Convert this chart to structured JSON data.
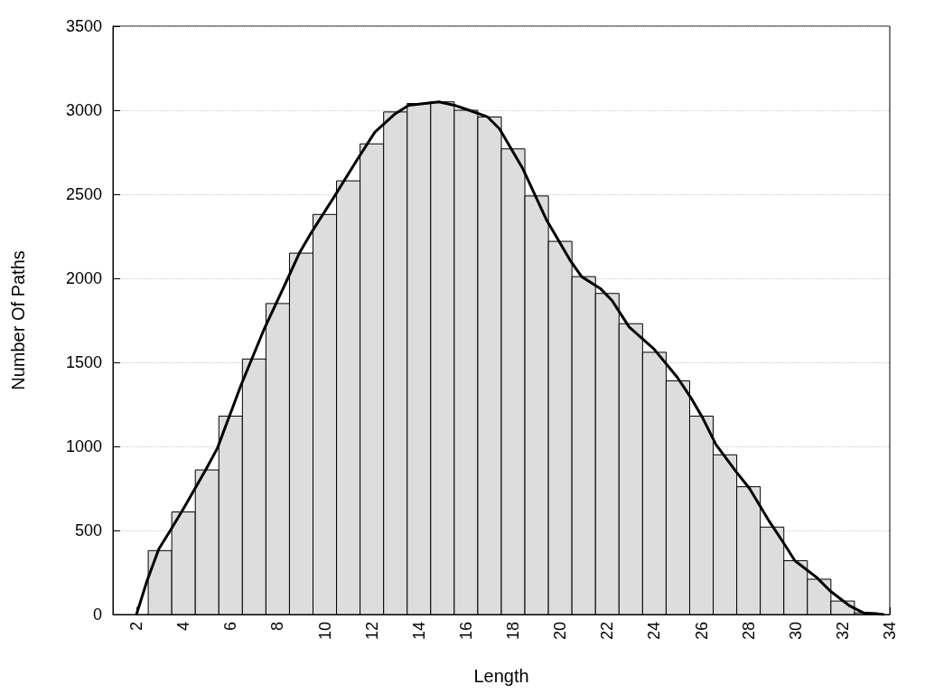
{
  "chart_data": {
    "type": "histogram",
    "xlabel": "Length",
    "ylabel": "Number Of Paths",
    "xlim": [
      1,
      34
    ],
    "xticks": [
      2,
      4,
      6,
      8,
      10,
      12,
      14,
      16,
      18,
      20,
      22,
      24,
      26,
      28,
      30,
      32,
      34
    ],
    "ylim": [
      0,
      3500
    ],
    "yticks": [
      0,
      500,
      1000,
      1500,
      2000,
      2500,
      3000,
      3500
    ],
    "grid": "y",
    "marker": "none",
    "series": [
      {
        "color": "#dddddd",
        "bins": [
          2.5,
          3.5,
          4.5,
          5.5,
          6.5,
          7.5,
          8.5,
          9.5,
          10.5,
          11.5,
          12.5,
          13.5,
          14.5,
          15.5,
          16.5,
          17.5,
          18.5,
          19.5,
          20.5,
          21.5,
          22.5,
          23.5,
          24.5,
          25.5,
          26.5,
          27.5,
          28.5,
          29.5,
          30.5,
          31.5,
          32.5,
          33.5
        ],
        "values": [
          380,
          610,
          860,
          1180,
          1520,
          1850,
          2150,
          2380,
          2580,
          2800,
          2990,
          3040,
          3050,
          3000,
          2960,
          2770,
          2490,
          2220,
          2010,
          1910,
          1730,
          1560,
          1390,
          1180,
          950,
          760,
          520,
          320,
          210,
          80,
          10
        ]
      },
      {
        "type": "line",
        "color": "#000000",
        "x": [
          2.0,
          2.45,
          2.95,
          3.44,
          4.0,
          4.94,
          5.44,
          6.43,
          7.43,
          8.43,
          8.92,
          9.42,
          10.42,
          11.35,
          12.13,
          13.0,
          13.57,
          14.85,
          15.5,
          16.13,
          16.92,
          17.42,
          18.42,
          19.41,
          20.41,
          20.91,
          21.7,
          22.19,
          22.93,
          23.98,
          24.98,
          25.55,
          26.05,
          26.62,
          27.47,
          28.04,
          28.9,
          29.47,
          29.97,
          30.9,
          31.47,
          32.31,
          32.88,
          33.73
        ],
        "values": [
          0,
          200,
          390,
          500,
          630,
          860,
          990,
          1360,
          1700,
          2000,
          2150,
          2270,
          2490,
          2700,
          2870,
          2980,
          3030,
          3050,
          3030,
          3000,
          2960,
          2890,
          2650,
          2350,
          2110,
          2010,
          1940,
          1870,
          1710,
          1580,
          1410,
          1290,
          1170,
          1010,
          850,
          750,
          550,
          430,
          320,
          220,
          140,
          50,
          10,
          0
        ]
      }
    ]
  }
}
